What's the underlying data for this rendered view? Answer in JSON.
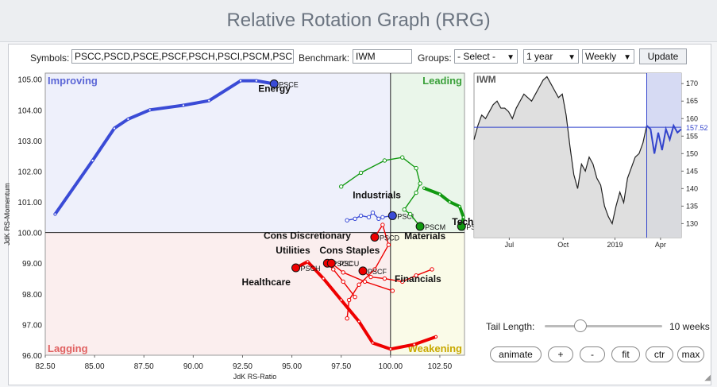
{
  "page": {
    "title": "Relative Rotation Graph (RRG)"
  },
  "controls": {
    "symbols_label": "Symbols:",
    "symbols_value": "PSCC,PSCD,PSCE,PSCF,PSCH,PSCI,PSCM,PSC",
    "benchmark_label": "Benchmark:",
    "benchmark_value": "IWM",
    "groups_label": "Groups:",
    "groups_value": "- Select -",
    "period_value": "1 year",
    "interval_value": "Weekly",
    "update_label": "Update"
  },
  "tail": {
    "label": "Tail Length:",
    "value": "10 weeks",
    "level_fraction": 0.3
  },
  "buttons": {
    "animate": "animate",
    "plus": "+",
    "minus": "-",
    "fit": "fit",
    "ctr": "ctr",
    "max": "max"
  },
  "colors": {
    "improving": "#5b66d6",
    "leading": "#3aa03a",
    "lagging": "#e06060",
    "weakening": "#c8a800",
    "improving_bg": "#eef0fb",
    "leading_bg": "#eaf6ea",
    "lagging_bg": "#fbeeee",
    "weakening_bg": "#fafbe8",
    "blue_tail": "#3a4bd6",
    "green_tail": "#119911",
    "red_tail": "#ee0000",
    "benchmark_line": "#222222",
    "benchmark_recent": "#3344cc"
  },
  "chart_data": [
    {
      "type": "scatter",
      "title": "",
      "xlabel": "JdK RS-Ratio",
      "ylabel": "JdK RS-Momentum",
      "xlim": [
        82.5,
        103.75
      ],
      "ylim": [
        96,
        105.2
      ],
      "xticks": [
        "82.50",
        "85.00",
        "87.50",
        "90.00",
        "92.50",
        "95.00",
        "97.50",
        "100.00",
        "102.50"
      ],
      "yticks": [
        "96.00",
        "97.00",
        "98.00",
        "99.00",
        "100.00",
        "101.00",
        "102.00",
        "103.00",
        "104.00",
        "105.00"
      ],
      "quadrants": {
        "improving": "Improving",
        "leading": "Leading",
        "lagging": "Lagging",
        "weakening": "Weakening"
      },
      "series": [
        {
          "name": "Energy",
          "symbol": "PSCE",
          "color": "blue",
          "style": "thick",
          "points": [
            [
              83.0,
              100.6
            ],
            [
              84.9,
              102.35
            ],
            [
              86.0,
              103.4
            ],
            [
              86.7,
              103.7
            ],
            [
              87.8,
              104.0
            ],
            [
              89.5,
              104.15
            ],
            [
              90.8,
              104.3
            ],
            [
              92.4,
              104.95
            ],
            [
              93.2,
              104.95
            ],
            [
              94.1,
              104.85
            ]
          ]
        },
        {
          "name": "Industrials",
          "symbol": "PSCI",
          "color": "blue",
          "style": "thin",
          "points": [
            [
              97.8,
              100.4
            ],
            [
              98.2,
              100.45
            ],
            [
              98.5,
              100.55
            ],
            [
              98.9,
              100.5
            ],
            [
              99.1,
              100.65
            ],
            [
              99.4,
              100.45
            ],
            [
              99.6,
              100.5
            ],
            [
              100.1,
              100.55
            ]
          ]
        },
        {
          "name": "Materials",
          "symbol": "PSCM",
          "color": "green",
          "style": "thin",
          "points": [
            [
              97.5,
              101.5
            ],
            [
              98.5,
              101.95
            ],
            [
              99.7,
              102.35
            ],
            [
              100.6,
              102.45
            ],
            [
              101.3,
              102.1
            ],
            [
              101.5,
              101.6
            ],
            [
              101.3,
              101.3
            ],
            [
              100.7,
              100.75
            ],
            [
              101.0,
              100.6
            ],
            [
              101.5,
              100.2
            ]
          ]
        },
        {
          "name": "Technology",
          "symbol": "PSCT",
          "color": "green",
          "style": "thick",
          "points": [
            [
              101.7,
              101.45
            ],
            [
              102.5,
              101.25
            ],
            [
              103.0,
              101.0
            ],
            [
              103.5,
              100.85
            ],
            [
              103.7,
              100.5
            ],
            [
              103.6,
              100.2
            ]
          ]
        },
        {
          "name": "Cons Discretionary",
          "symbol": "PSCD",
          "color": "red",
          "style": "thin",
          "points": [
            [
              97.8,
              97.2
            ],
            [
              97.9,
              97.8
            ],
            [
              98.4,
              98.3
            ],
            [
              99.2,
              98.8
            ],
            [
              99.9,
              99.6
            ],
            [
              99.6,
              100.25
            ],
            [
              99.2,
              99.85
            ]
          ]
        },
        {
          "name": "Cons Staples",
          "symbol": "PSCC",
          "color": "red",
          "style": "thin",
          "points": [
            [
              98.2,
              97.9
            ],
            [
              97.6,
              98.4
            ],
            [
              97.1,
              98.8
            ],
            [
              96.8,
              99.0
            ]
          ]
        },
        {
          "name": "Utilities",
          "symbol": "PSCU",
          "color": "red",
          "style": "thin",
          "points": [
            [
              100.1,
              98.1
            ],
            [
              98.7,
              98.4
            ],
            [
              97.6,
              98.7
            ],
            [
              97.0,
              99.0
            ]
          ]
        },
        {
          "name": "Financials",
          "symbol": "PSCF",
          "color": "red",
          "style": "thin",
          "points": [
            [
              102.1,
              98.8
            ],
            [
              101.3,
              98.6
            ],
            [
              100.6,
              98.4
            ],
            [
              99.7,
              98.5
            ],
            [
              99.0,
              98.55
            ],
            [
              98.6,
              98.75
            ]
          ]
        },
        {
          "name": "Healthcare",
          "symbol": "PSCH",
          "color": "red",
          "style": "thick",
          "points": [
            [
              102.3,
              96.6
            ],
            [
              101.2,
              96.35
            ],
            [
              100.0,
              96.2
            ],
            [
              99.1,
              96.4
            ],
            [
              98.4,
              97.1
            ],
            [
              97.5,
              97.8
            ],
            [
              96.6,
              98.5
            ],
            [
              95.8,
              99.05
            ],
            [
              95.2,
              98.85
            ]
          ]
        }
      ]
    },
    {
      "type": "line",
      "title": "IWM",
      "ylim": [
        126,
        173
      ],
      "yticks": [
        "130",
        "135",
        "140",
        "145",
        "150",
        "155",
        "160",
        "165",
        "170"
      ],
      "xticks": [
        "Jul",
        "Oct",
        "2019",
        "Apr"
      ],
      "last_value": "157.52",
      "values": [
        154,
        158,
        161,
        160,
        162,
        164,
        165,
        163,
        163,
        162,
        160,
        163,
        165,
        167,
        166,
        165,
        167,
        169,
        171,
        172,
        170,
        168,
        166,
        167,
        161,
        152,
        144,
        140,
        147,
        145,
        149,
        147,
        143,
        141,
        135,
        132,
        130,
        135,
        139,
        136,
        143,
        146,
        149,
        150,
        153,
        158,
        157,
        150,
        156,
        151,
        157,
        154,
        158,
        156,
        157
      ]
    }
  ]
}
